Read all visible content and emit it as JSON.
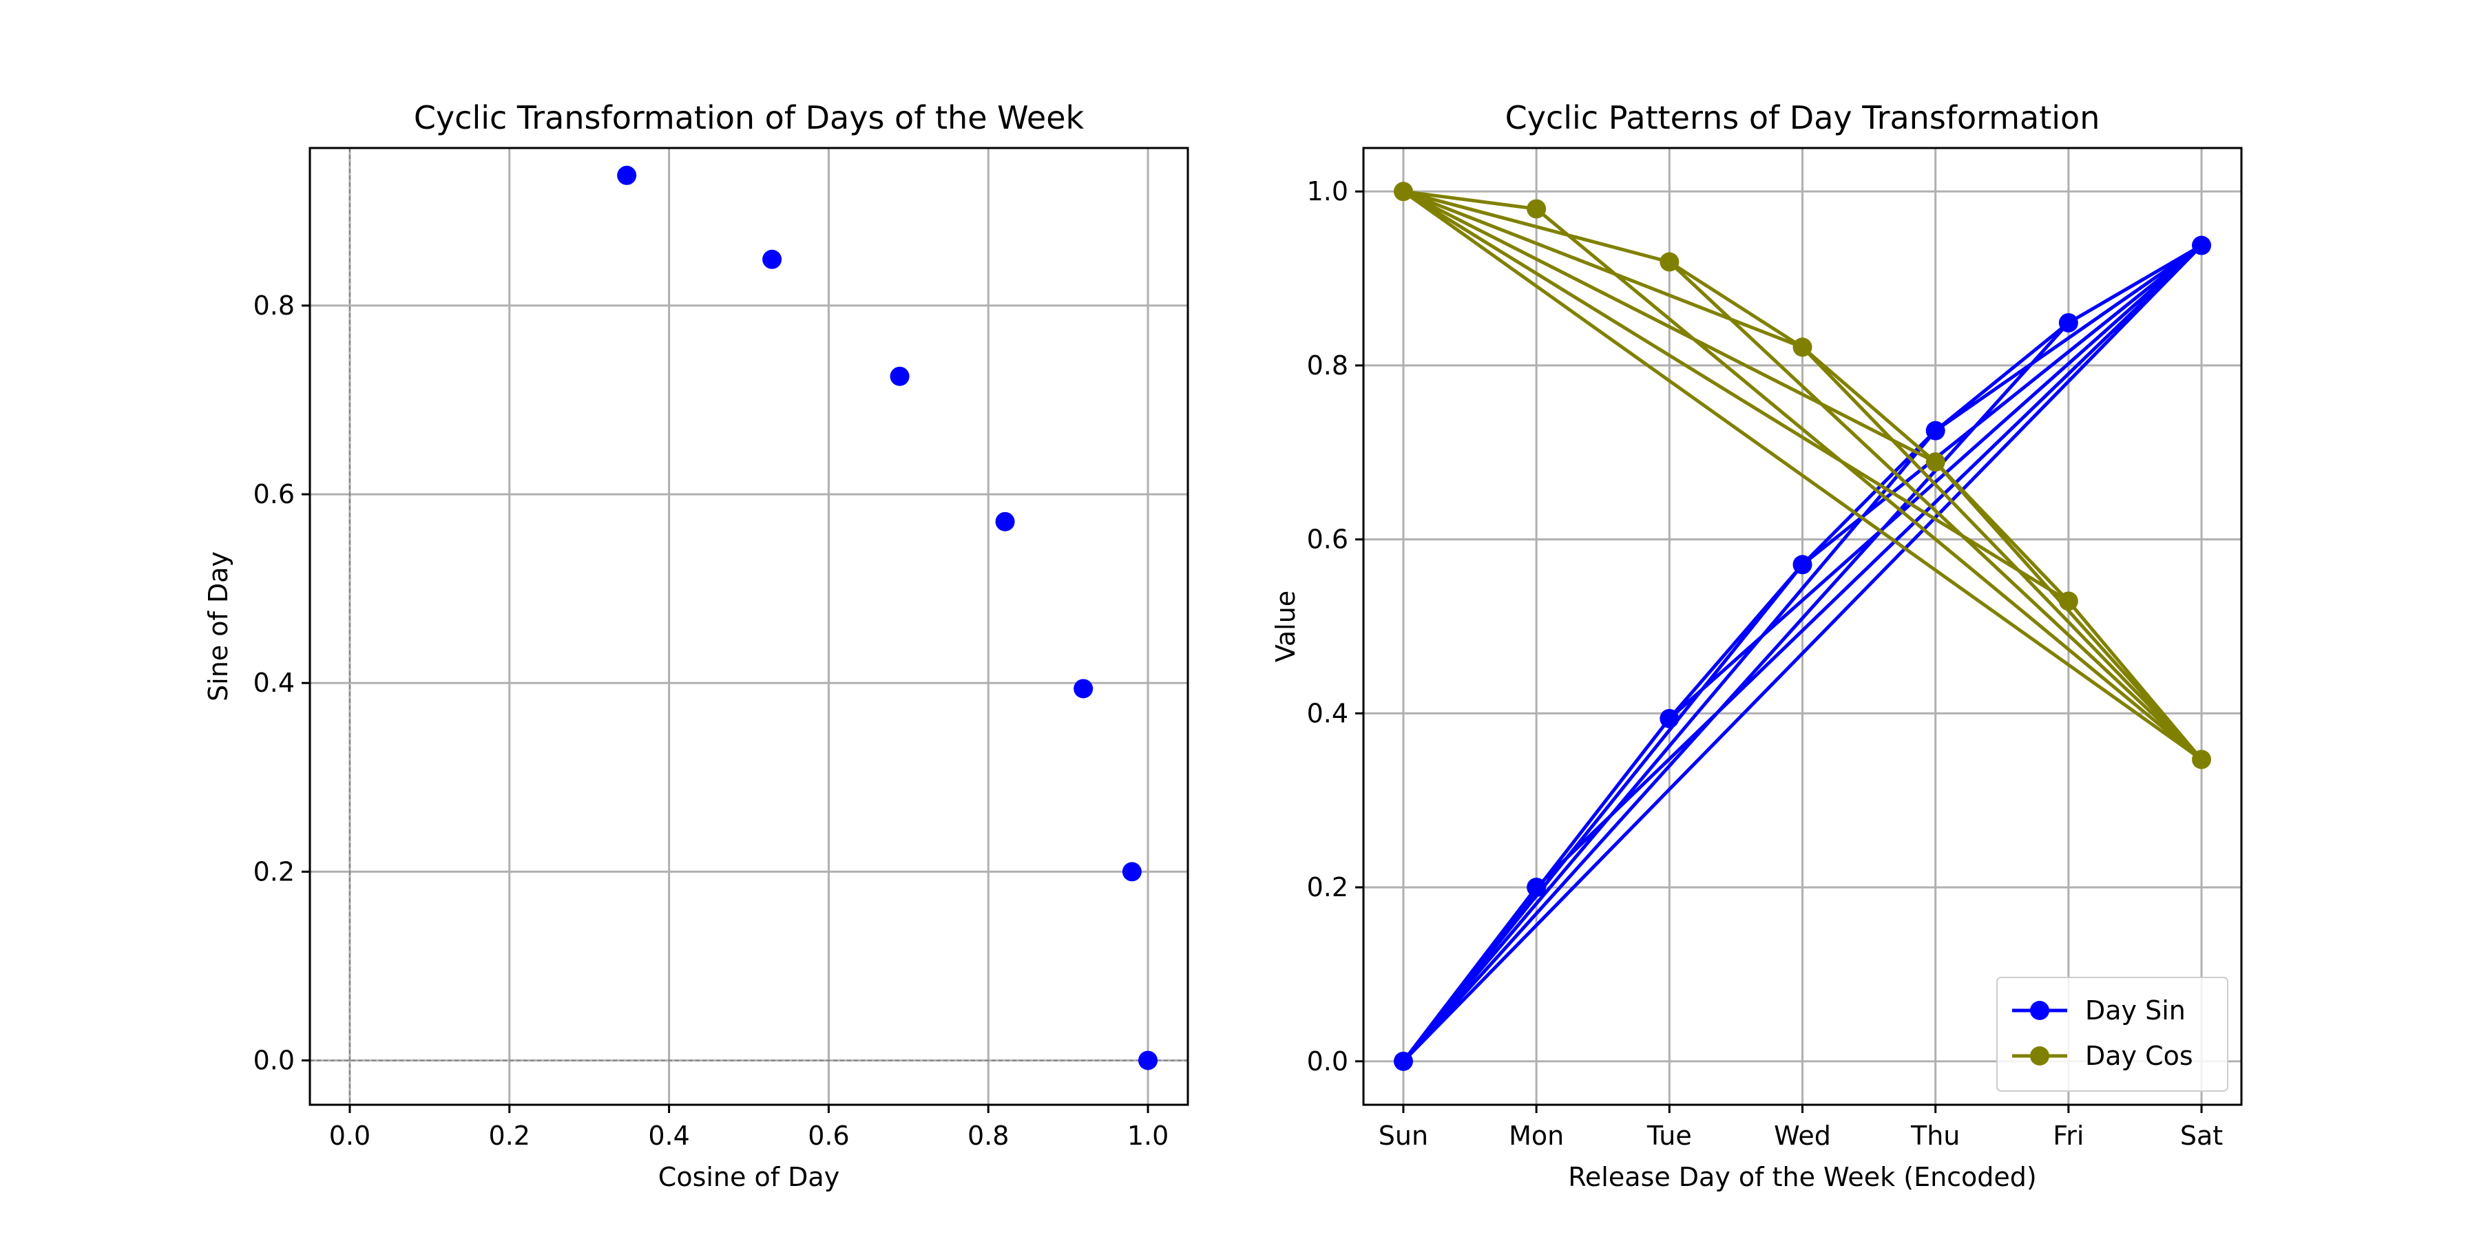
{
  "chart_data": [
    {
      "type": "scatter",
      "title": "Cyclic Transformation of Days of the Week",
      "xlabel": "Cosine of Day",
      "ylabel": "Sine of Day",
      "xlim": [
        -0.05,
        1.05
      ],
      "ylim": [
        -0.047,
        0.967
      ],
      "xticks": [
        0.0,
        0.2,
        0.4,
        0.6,
        0.8,
        1.0
      ],
      "xtick_labels": [
        "0.0",
        "0.2",
        "0.4",
        "0.6",
        "0.8",
        "1.0"
      ],
      "yticks": [
        0.0,
        0.2,
        0.4,
        0.6,
        0.8
      ],
      "ytick_labels": [
        "0.0",
        "0.2",
        "0.4",
        "0.6",
        "0.8"
      ],
      "grid": true,
      "reference_lines": {
        "x": 0,
        "y": 0,
        "style": "dashed",
        "color": "#808080"
      },
      "color": "#0000ff",
      "points": [
        {
          "x": 1.0,
          "y": 0.0
        },
        {
          "x": 0.98,
          "y": 0.2
        },
        {
          "x": 0.919,
          "y": 0.394
        },
        {
          "x": 0.821,
          "y": 0.571
        },
        {
          "x": 0.689,
          "y": 0.725
        },
        {
          "x": 0.529,
          "y": 0.849
        },
        {
          "x": 0.347,
          "y": 0.938
        }
      ]
    },
    {
      "type": "line",
      "title": "Cyclic Patterns of Day Transformation",
      "xlabel": "Release Day of the Week (Encoded)",
      "ylabel": "Value",
      "categories": [
        "Sun",
        "Mon",
        "Tue",
        "Wed",
        "Thu",
        "Fri",
        "Sat"
      ],
      "xlim": [
        -0.3,
        6.3
      ],
      "ylim": [
        -0.05,
        1.05
      ],
      "yticks": [
        0.0,
        0.2,
        0.4,
        0.6,
        0.8,
        1.0
      ],
      "ytick_labels": [
        "0.0",
        "0.2",
        "0.4",
        "0.6",
        "0.8",
        "1.0"
      ],
      "grid": true,
      "legend_position": "lower-right",
      "series": [
        {
          "name": "Day Sin",
          "color": "#0000ff",
          "values": [
            0.0,
            0.2,
            0.394,
            0.571,
            0.725,
            0.849,
            0.938
          ],
          "drawn_order": [
            0,
            6,
            0,
            5,
            6,
            0,
            4,
            6,
            0,
            3,
            6,
            0,
            2,
            6,
            0,
            1,
            6,
            2,
            3,
            4,
            5,
            6
          ]
        },
        {
          "name": "Day Cos",
          "color": "#808000",
          "values": [
            1.0,
            0.98,
            0.919,
            0.821,
            0.689,
            0.529,
            0.347
          ],
          "drawn_order": [
            0,
            6,
            0,
            5,
            6,
            0,
            4,
            6,
            0,
            3,
            6,
            0,
            2,
            6,
            0,
            1,
            6,
            2,
            3,
            4,
            5,
            6
          ]
        }
      ]
    }
  ]
}
